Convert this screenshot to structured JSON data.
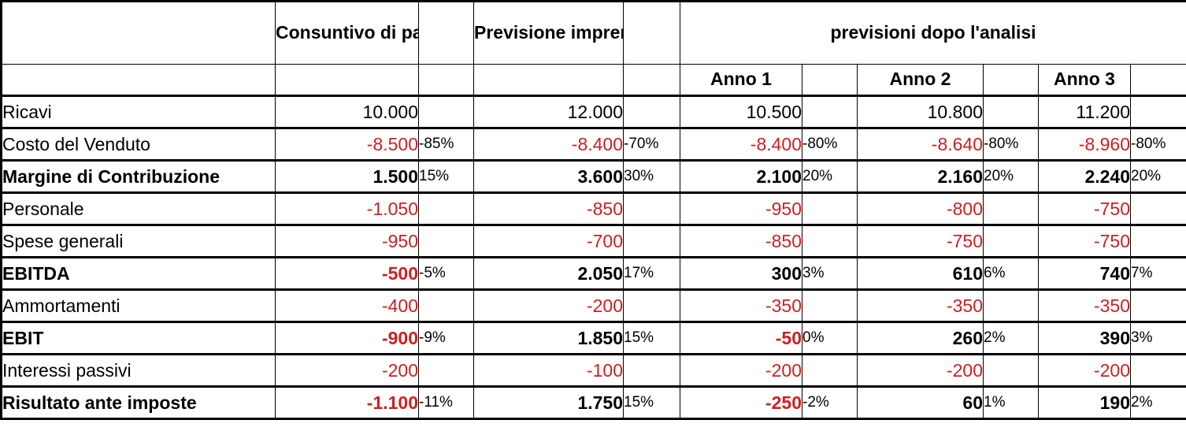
{
  "colors": {
    "negative_value_red": "#CE2020",
    "border_black": "#000000",
    "background": "#FFFFFF"
  },
  "table": {
    "header_row1": {
      "consuntivo": "Consuntivo di partenza",
      "previsione": "Previsione imprenditore",
      "analisi": "previsioni dopo l'analisi"
    },
    "header_row2": {
      "anno1": "Anno 1",
      "anno2": "Anno 2",
      "anno3": "Anno 3"
    },
    "rows": [
      {
        "label": "Ricavi",
        "bold": false,
        "cells": [
          "10.000",
          "",
          "12.000",
          "",
          "10.500",
          "",
          "10.800",
          "",
          "11.200",
          ""
        ]
      },
      {
        "label": "Costo del Venduto",
        "bold": false,
        "cells": [
          "-8.500",
          "-85%",
          "-8.400",
          "-70%",
          "-8.400",
          "-80%",
          "-8.640",
          "-80%",
          "-8.960",
          "-80%"
        ]
      },
      {
        "label": "Margine di Contribuzione",
        "bold": true,
        "cells": [
          "1.500",
          "15%",
          "3.600",
          "30%",
          "2.100",
          "20%",
          "2.160",
          "20%",
          "2.240",
          "20%"
        ]
      },
      {
        "label": "Personale",
        "bold": false,
        "cells": [
          "-1.050",
          "",
          "-850",
          "",
          "-950",
          "",
          "-800",
          "",
          "-750",
          ""
        ]
      },
      {
        "label": "Spese generali",
        "bold": false,
        "cells": [
          "-950",
          "",
          "-700",
          "",
          "-850",
          "",
          "-750",
          "",
          "-750",
          ""
        ]
      },
      {
        "label": "EBITDA",
        "bold": true,
        "cells": [
          "-500",
          "-5%",
          "2.050",
          "17%",
          "300",
          "3%",
          "610",
          "6%",
          "740",
          "7%"
        ]
      },
      {
        "label": "Ammortamenti",
        "bold": false,
        "cells": [
          "-400",
          "",
          "-200",
          "",
          "-350",
          "",
          "-350",
          "",
          "-350",
          ""
        ]
      },
      {
        "label": "EBIT",
        "bold": true,
        "cells": [
          "-900",
          "-9%",
          "1.850",
          "15%",
          "-50",
          "0%",
          "260",
          "2%",
          "390",
          "3%"
        ]
      },
      {
        "label": "Interessi passivi",
        "bold": false,
        "cells": [
          "-200",
          "",
          "-100",
          "",
          "-200",
          "",
          "-200",
          "",
          "-200",
          ""
        ]
      },
      {
        "label": "Risultato ante imposte",
        "bold": true,
        "cells": [
          "-1.100",
          "-11%",
          "1.750",
          "15%",
          "-250",
          "-2%",
          "60",
          "1%",
          "190",
          "2%"
        ]
      }
    ]
  }
}
